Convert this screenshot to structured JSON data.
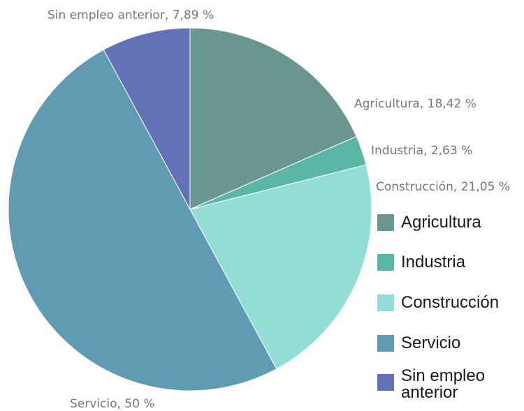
{
  "chart_data": {
    "type": "pie",
    "title": "",
    "start_angle_deg": 0,
    "direction": "clockwise",
    "slices": [
      {
        "name": "Agricultura",
        "value": 18.42,
        "label": "Agricultura, 18,42 %",
        "color": "#6a9690"
      },
      {
        "name": "Industria",
        "value": 2.63,
        "label": "Industria, 2,63 %",
        "color": "#5bb6a5"
      },
      {
        "name": "Construcción",
        "value": 21.05,
        "label": "Construcción, 21,05 %",
        "color": "#93ddd6"
      },
      {
        "name": "Servicio",
        "value": 50,
        "label": "Servicio, 50 %",
        "color": "#5f9cb4"
      },
      {
        "name": "Sin empleo anterior",
        "value": 7.89,
        "label": "Sin empleo anterior, 7,89 %",
        "color": "#6371b7"
      }
    ],
    "legend_position": "right"
  }
}
